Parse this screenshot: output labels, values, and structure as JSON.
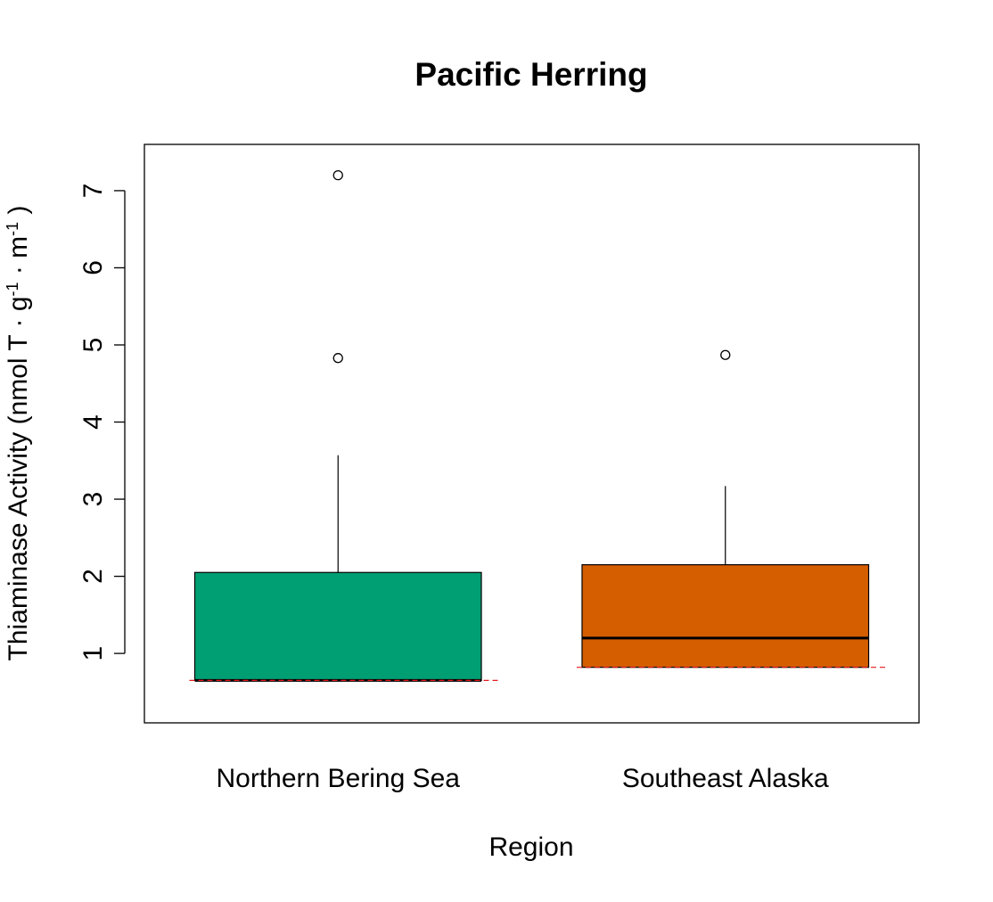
{
  "chart_data": {
    "type": "boxplot",
    "title": "Pacific Herring",
    "xlabel": "Region",
    "ylabel": {
      "main": "Thiaminase Activity",
      "unit_parts": [
        "nmol T",
        "g",
        "-1",
        "m",
        "-1"
      ]
    },
    "ylim": [
      0.1,
      7.6
    ],
    "yticks": [
      1,
      2,
      3,
      4,
      5,
      6,
      7
    ],
    "categories": [
      "Northern Bering Sea",
      "Southeast Alaska"
    ],
    "boxes": [
      {
        "name": "Northern Bering Sea",
        "color": "#009E73",
        "min": 0.65,
        "q1": 0.65,
        "median": 0.65,
        "q3": 2.05,
        "max": 3.57,
        "outliers": [
          4.83,
          7.2
        ],
        "reference_line": 0.65
      },
      {
        "name": "Southeast Alaska",
        "color": "#D55E00",
        "min": 0.82,
        "q1": 0.82,
        "median": 1.2,
        "q3": 2.15,
        "max": 3.17,
        "outliers": [
          4.87
        ],
        "reference_line": 0.82
      }
    ],
    "reference_line_color": "#E41A1C",
    "grid": false
  }
}
